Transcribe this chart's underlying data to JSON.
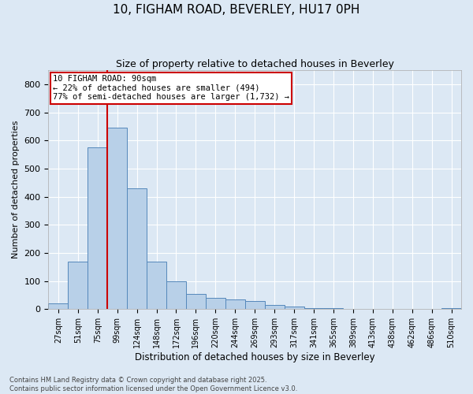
{
  "title": "10, FIGHAM ROAD, BEVERLEY, HU17 0PH",
  "subtitle": "Size of property relative to detached houses in Beverley",
  "xlabel": "Distribution of detached houses by size in Beverley",
  "ylabel": "Number of detached properties",
  "bar_labels": [
    "27sqm",
    "51sqm",
    "75sqm",
    "99sqm",
    "124sqm",
    "148sqm",
    "172sqm",
    "196sqm",
    "220sqm",
    "244sqm",
    "269sqm",
    "293sqm",
    "317sqm",
    "341sqm",
    "365sqm",
    "389sqm",
    "413sqm",
    "438sqm",
    "462sqm",
    "486sqm",
    "510sqm"
  ],
  "bar_values": [
    20,
    170,
    575,
    645,
    430,
    170,
    100,
    55,
    40,
    35,
    28,
    15,
    10,
    5,
    3,
    2,
    1,
    1,
    0,
    0,
    5
  ],
  "bar_color": "#b8d0e8",
  "bar_edge_color": "#5588bb",
  "vline_color": "#cc0000",
  "annotation_title": "10 FIGHAM ROAD: 90sqm",
  "annotation_line1": "← 22% of detached houses are smaller (494)",
  "annotation_line2": "77% of semi-detached houses are larger (1,732) →",
  "annotation_box_edge_color": "#cc0000",
  "ylim": [
    0,
    850
  ],
  "yticks": [
    0,
    100,
    200,
    300,
    400,
    500,
    600,
    700,
    800
  ],
  "footer_line1": "Contains HM Land Registry data © Crown copyright and database right 2025.",
  "footer_line2": "Contains public sector information licensed under the Open Government Licence v3.0.",
  "bg_color": "#dce8f4",
  "plot_bg_color": "#dce8f4"
}
